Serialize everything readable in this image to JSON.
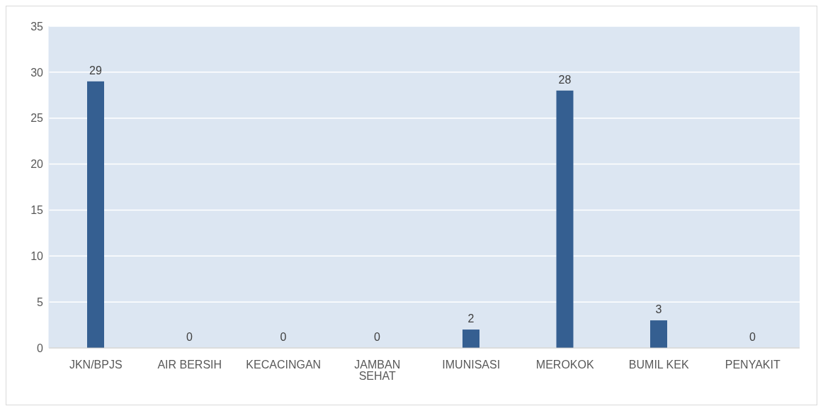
{
  "chart_data": {
    "type": "bar",
    "categories": [
      "JKN/BPJS",
      "AIR BERSIH",
      "KECACINGAN",
      "JAMBAN SEHAT",
      "IMUNISASI",
      "MEROKOK",
      "BUMIL KEK",
      "PENYAKIT"
    ],
    "values": [
      29,
      0,
      0,
      0,
      2,
      28,
      3,
      0
    ],
    "color": "#355f91",
    "ylim": [
      0,
      35
    ],
    "yticks": [
      0,
      5,
      10,
      15,
      20,
      25,
      30,
      35
    ],
    "grid": "y",
    "data_labels": true
  }
}
